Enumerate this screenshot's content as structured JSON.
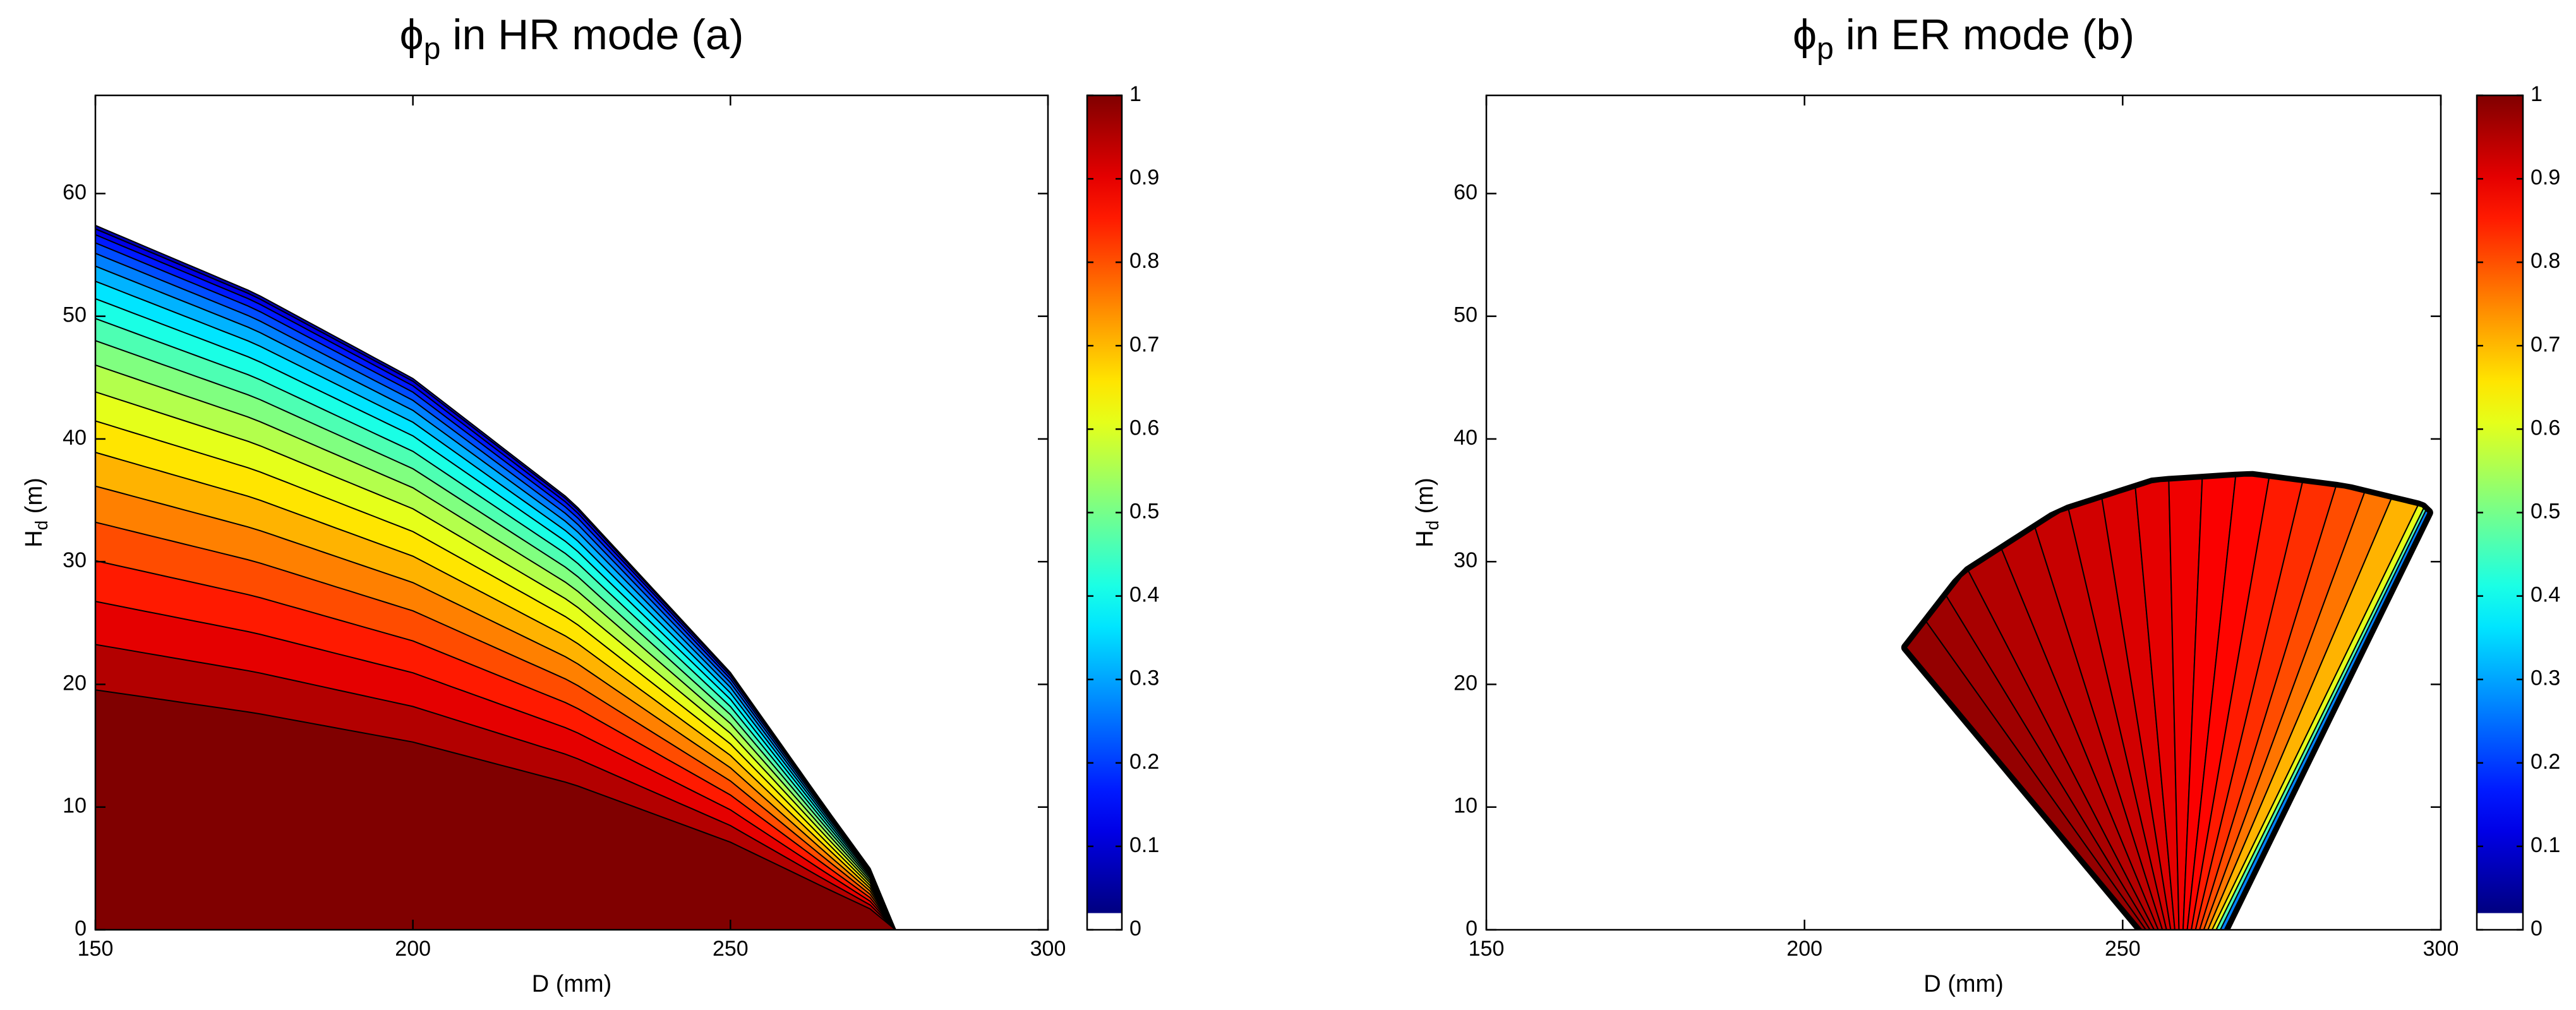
{
  "chart_data": [
    {
      "type": "contour",
      "title_symbol": "ϕ",
      "title_subscript": "p",
      "title_rest": " in HR mode (a)",
      "xlabel": "D (mm)",
      "ylabel_symbol": "H",
      "ylabel_subscript": "d",
      "ylabel_rest": " (m)",
      "xlim": [
        150,
        300
      ],
      "xticks": [
        150,
        200,
        250,
        300
      ],
      "ylim": [
        0,
        68
      ],
      "yticks": [
        0,
        10,
        20,
        30,
        40,
        50,
        60
      ],
      "clim": [
        0,
        1
      ],
      "cticks": [
        0,
        0.1,
        0.2,
        0.3,
        0.4,
        0.5,
        0.6,
        0.7,
        0.8,
        0.9,
        1
      ],
      "levels": [
        0.05,
        0.1,
        0.15,
        0.2,
        0.25,
        0.3,
        0.35,
        0.4,
        0.45,
        0.5,
        0.55,
        0.6,
        0.65,
        0.7,
        0.75,
        0.8,
        0.85,
        0.9,
        0.95,
        1
      ]
    },
    {
      "type": "fan",
      "title_symbol": "ϕ",
      "title_subscript": "p",
      "title_rest": " in ER mode (b)",
      "xlabel": "D (mm)",
      "ylabel_symbol": "H",
      "ylabel_subscript": "d",
      "ylabel_rest": " (m)",
      "xlim": [
        150,
        300
      ],
      "xticks": [
        150,
        200,
        250,
        300
      ],
      "ylim": [
        0,
        68
      ],
      "yticks": [
        0,
        10,
        20,
        30,
        40,
        50,
        60
      ],
      "clim": [
        0,
        1
      ],
      "cticks": [
        0,
        0.1,
        0.2,
        0.3,
        0.4,
        0.5,
        0.6,
        0.7,
        0.8,
        0.9,
        1
      ],
      "levels": [
        0.98,
        0.97,
        0.96,
        0.95,
        0.94,
        0.93,
        0.92,
        0.91,
        0.9,
        0.89,
        0.88,
        0.87,
        0.85,
        0.83,
        0.8,
        0.76,
        0.7,
        0.6,
        0.45,
        0.25
      ]
    }
  ]
}
